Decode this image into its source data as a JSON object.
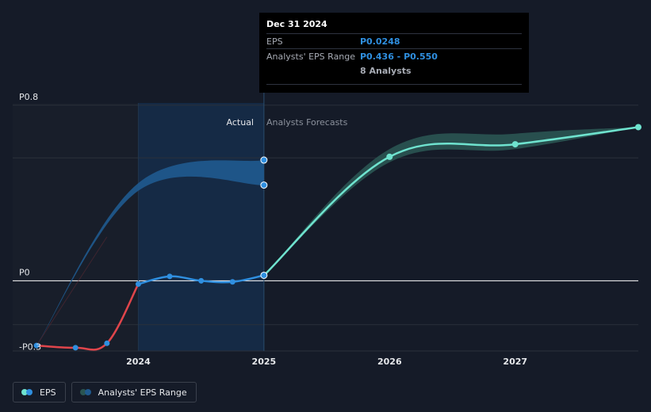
{
  "chart_data": {
    "type": "line",
    "y_ticks": [
      {
        "label": "P0.8",
        "value": 0.8
      },
      {
        "label": "P0",
        "value": 0
      },
      {
        "label": "-P0.3",
        "value": -0.3
      }
    ],
    "x_ticks": [
      {
        "label": "2024",
        "value": 2024.0
      },
      {
        "label": "2025",
        "value": 2025.0
      },
      {
        "label": "2026",
        "value": 2026.0
      },
      {
        "label": "2027",
        "value": 2027.0
      }
    ],
    "ylim": [
      -0.32,
      0.81
    ],
    "xlim": [
      2023.0,
      2027.98
    ],
    "divider_x": 2025.0,
    "shade_from": 2024.0,
    "actual_label": "Actual",
    "forecast_label": "Analysts Forecasts",
    "eps_actual": [
      {
        "x": 2023.19,
        "y": -0.295
      },
      {
        "x": 2023.5,
        "y": -0.305
      },
      {
        "x": 2023.75,
        "y": -0.285
      },
      {
        "x": 2024.0,
        "y": -0.015
      },
      {
        "x": 2024.25,
        "y": 0.02
      },
      {
        "x": 2024.5,
        "y": 0.0
      },
      {
        "x": 2024.75,
        "y": -0.005
      },
      {
        "x": 2025.0,
        "y": 0.0248
      }
    ],
    "eps_forecast": [
      {
        "x": 2025.0,
        "y": 0.0248
      },
      {
        "x": 2026.0,
        "y": 0.565
      },
      {
        "x": 2027.0,
        "y": 0.622
      },
      {
        "x": 2027.98,
        "y": 0.7
      }
    ],
    "range_actual": [
      {
        "x": 2023.19,
        "low": -0.295,
        "high": -0.295
      },
      {
        "x": 2024.0,
        "low": 0.41,
        "high": 0.445
      },
      {
        "x": 2025.0,
        "low": 0.436,
        "high": 0.55
      }
    ],
    "range_forecast": [
      {
        "x": 2025.0,
        "low": 0.0248,
        "high": 0.0248
      },
      {
        "x": 2026.0,
        "low": 0.54,
        "high": 0.6
      },
      {
        "x": 2027.0,
        "low": 0.6,
        "high": 0.67
      },
      {
        "x": 2027.98,
        "low": 0.7,
        "high": 0.7
      }
    ],
    "colors": {
      "background": "#151b28",
      "shade": "#152a45",
      "eps_negative": "#e0454b",
      "eps_positive": "#2f8fe0",
      "forecast_line": "#6fe3cf",
      "range_actual": "#1f5a8f",
      "range_forecast": "#2a5552",
      "grid": "#2a303b",
      "zero_line": "#ffffff"
    }
  },
  "tooltip": {
    "date": "Dec 31 2024",
    "eps_label": "EPS",
    "eps_value": "P0.0248",
    "range_label": "Analysts' EPS Range",
    "range_value": "P0.436 - P0.550",
    "analysts": "8 Analysts"
  },
  "legend": {
    "eps_label": "EPS",
    "range_label": "Analysts' EPS Range"
  }
}
